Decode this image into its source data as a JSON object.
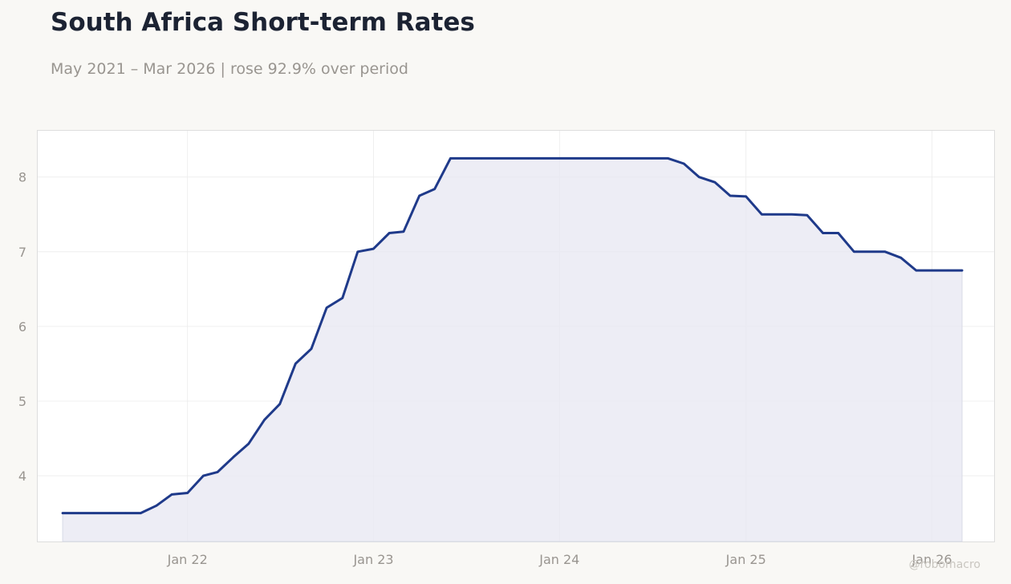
{
  "header": {
    "title": "South Africa Short-term Rates",
    "subtitle": "May 2021 – Mar 2026 | rose 92.9% over period"
  },
  "watermark": "@robomacro",
  "colors": {
    "line": "#1f3a8a",
    "fill": "#e8e9f2",
    "grid": "#ebebeb",
    "tick_text": "#999590",
    "panel_border": "#dddddd"
  },
  "chart_data": {
    "type": "area",
    "title": "South Africa Short-term Rates",
    "xlabel": "",
    "ylabel": "",
    "grid": true,
    "legend": "none",
    "ylim": [
      3.12,
      8.62
    ],
    "xlim": [
      "2021-03-13",
      "2026-05-03"
    ],
    "x_ticks": [
      {
        "date": "2022-01-01",
        "label": "Jan 22"
      },
      {
        "date": "2023-01-01",
        "label": "Jan 23"
      },
      {
        "date": "2024-01-01",
        "label": "Jan 24"
      },
      {
        "date": "2025-01-01",
        "label": "Jan 25"
      },
      {
        "date": "2026-01-01",
        "label": "Jan 26"
      }
    ],
    "y_ticks": [
      4,
      5,
      6,
      7,
      8
    ],
    "series": [
      {
        "points": [
          [
            "2021-05-01",
            3.5
          ],
          [
            "2021-06-01",
            3.5
          ],
          [
            "2021-07-01",
            3.5
          ],
          [
            "2021-08-01",
            3.5
          ],
          [
            "2021-09-01",
            3.5
          ],
          [
            "2021-10-01",
            3.5
          ],
          [
            "2021-11-01",
            3.6
          ],
          [
            "2021-12-01",
            3.75
          ],
          [
            "2022-01-01",
            3.77
          ],
          [
            "2022-02-01",
            4.0
          ],
          [
            "2022-03-01",
            4.05
          ],
          [
            "2022-04-01",
            4.25
          ],
          [
            "2022-05-01",
            4.43
          ],
          [
            "2022-06-01",
            4.75
          ],
          [
            "2022-07-01",
            4.96
          ],
          [
            "2022-08-01",
            5.5
          ],
          [
            "2022-09-01",
            5.7
          ],
          [
            "2022-10-01",
            6.25
          ],
          [
            "2022-11-01",
            6.38
          ],
          [
            "2022-12-01",
            7.0
          ],
          [
            "2023-01-01",
            7.04
          ],
          [
            "2023-02-01",
            7.25
          ],
          [
            "2023-03-01",
            7.27
          ],
          [
            "2023-04-01",
            7.75
          ],
          [
            "2023-05-01",
            7.84
          ],
          [
            "2023-06-01",
            8.25
          ],
          [
            "2023-07-01",
            8.25
          ],
          [
            "2023-08-01",
            8.25
          ],
          [
            "2023-09-01",
            8.25
          ],
          [
            "2023-10-01",
            8.25
          ],
          [
            "2023-11-01",
            8.25
          ],
          [
            "2023-12-01",
            8.25
          ],
          [
            "2024-01-01",
            8.25
          ],
          [
            "2024-02-01",
            8.25
          ],
          [
            "2024-03-01",
            8.25
          ],
          [
            "2024-04-01",
            8.25
          ],
          [
            "2024-05-01",
            8.25
          ],
          [
            "2024-06-01",
            8.25
          ],
          [
            "2024-07-01",
            8.25
          ],
          [
            "2024-08-01",
            8.25
          ],
          [
            "2024-09-01",
            8.18
          ],
          [
            "2024-10-01",
            8.0
          ],
          [
            "2024-11-01",
            7.93
          ],
          [
            "2024-12-01",
            7.75
          ],
          [
            "2025-01-01",
            7.74
          ],
          [
            "2025-02-01",
            7.5
          ],
          [
            "2025-03-01",
            7.5
          ],
          [
            "2025-04-01",
            7.5
          ],
          [
            "2025-05-01",
            7.49
          ],
          [
            "2025-06-01",
            7.25
          ],
          [
            "2025-07-01",
            7.25
          ],
          [
            "2025-08-01",
            7.0
          ],
          [
            "2025-09-01",
            7.0
          ],
          [
            "2025-10-01",
            7.0
          ],
          [
            "2025-11-01",
            6.92
          ],
          [
            "2025-12-01",
            6.75
          ],
          [
            "2026-01-01",
            6.75
          ],
          [
            "2026-02-01",
            6.75
          ],
          [
            "2026-03-01",
            6.75
          ]
        ]
      }
    ]
  }
}
